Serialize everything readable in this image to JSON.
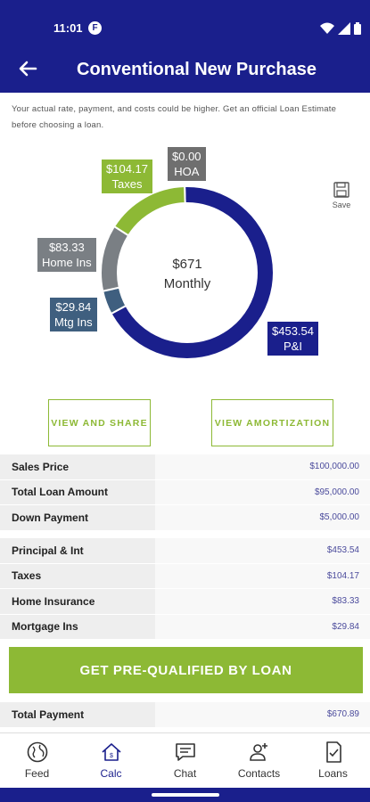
{
  "status": {
    "time": "11:01",
    "app_badge": "F"
  },
  "header": {
    "title": "Conventional New Purchase"
  },
  "disclaimer": "Your actual rate, payment, and costs could be higher. Get an official Loan Estimate before choosing a loan.",
  "chart_data": {
    "type": "pie",
    "center": {
      "value": "$671",
      "label": "Monthly"
    },
    "slices": [
      {
        "name": "P&I",
        "label": "$453.54",
        "value": 453.54,
        "color": "#1a1f8c"
      },
      {
        "name": "Mtg Ins",
        "label": "$29.84",
        "value": 29.84,
        "color": "#3f5f7f"
      },
      {
        "name": "Home Ins",
        "label": "$83.33",
        "value": 83.33,
        "color": "#7a7f84"
      },
      {
        "name": "Taxes",
        "label": "$104.17",
        "value": 104.17,
        "color": "#8db935"
      },
      {
        "name": "HOA",
        "label": "$0.00",
        "value": 0,
        "color": "#6f6f6f"
      }
    ]
  },
  "save_label": "Save",
  "buttons": {
    "view_share": "VIEW AND SHARE",
    "view_amort": "VIEW AMORTIZATION",
    "cta": "GET PRE-QUALIFIED BY LOAN"
  },
  "loan_rows": [
    {
      "label": "Sales Price",
      "value": "$100,000.00"
    },
    {
      "label": "Total Loan Amount",
      "value": "$95,000.00"
    },
    {
      "label": "Down Payment",
      "value": "$5,000.00"
    }
  ],
  "payment_rows": [
    {
      "label": "Principal & Int",
      "value": "$453.54"
    },
    {
      "label": "Taxes",
      "value": "$104.17"
    },
    {
      "label": "Home Insurance",
      "value": "$83.33"
    },
    {
      "label": "Mortgage Ins",
      "value": "$29.84"
    }
  ],
  "total_row": {
    "label": "Total Payment",
    "value": "$670.89"
  },
  "nav": [
    {
      "label": "Feed",
      "icon": "globe-icon"
    },
    {
      "label": "Calc",
      "icon": "home-calc-icon",
      "active": true
    },
    {
      "label": "Chat",
      "icon": "chat-icon"
    },
    {
      "label": "Contacts",
      "icon": "contacts-icon"
    },
    {
      "label": "Loans",
      "icon": "loans-icon"
    }
  ]
}
